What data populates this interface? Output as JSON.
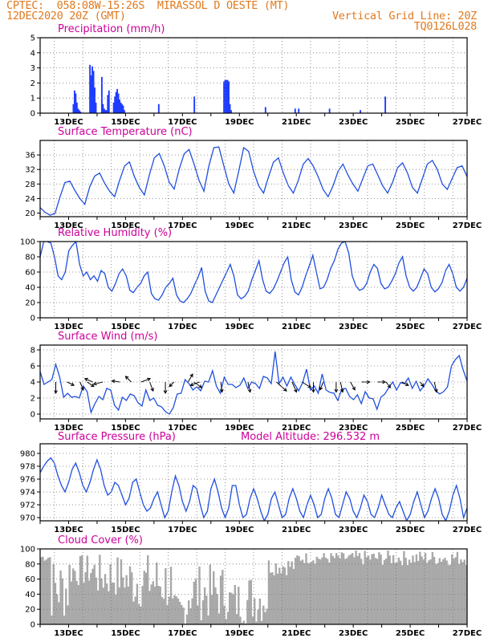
{
  "header": {
    "line1_left": "CPTEC:  058:08W-15:26S  MIRASSOL D OESTE (MT)",
    "line2_left": "12DEC2020 20Z (GMT)",
    "line2_right": "Vertical Grid Line: 20Z",
    "line3_right": "TQ0126L028"
  },
  "colors": {
    "header": "#e07a1f",
    "title": "#cc0099",
    "line": "#1f4fe0",
    "bar": "#1f3cff",
    "cloud": "#a9a9a9",
    "arrow": "#000000"
  },
  "x_tick_labels": [
    "13DEC",
    "15DEC",
    "17DEC",
    "19DEC",
    "21DEC",
    "23DEC",
    "25DEC",
    "27DEC"
  ],
  "chart_data": [
    {
      "type": "bar",
      "title": "Precipitation (mm/h)",
      "ylim": [
        0,
        5
      ],
      "yticks": [
        0,
        1,
        2,
        3,
        4,
        5
      ],
      "x_hours_since_start": [
        28,
        29,
        30,
        31,
        32,
        33,
        34,
        42,
        43,
        44,
        45,
        46,
        47,
        52,
        53,
        54,
        55,
        56,
        57,
        58,
        62,
        63,
        64,
        65,
        66,
        67,
        68,
        69,
        70,
        71,
        100,
        130,
        155,
        156,
        157,
        158,
        159,
        160,
        161,
        190,
        215,
        218,
        244,
        270,
        291
      ],
      "values": [
        0.6,
        1.5,
        1.3,
        0.7,
        0.3,
        0.2,
        0.1,
        3.2,
        2.5,
        3.1,
        2.8,
        1.7,
        0.7,
        2.4,
        0.6,
        0.3,
        0.2,
        0.2,
        1.2,
        1.5,
        0.7,
        1.1,
        1.4,
        1.6,
        1.3,
        0.9,
        0.7,
        0.6,
        0.5,
        0.2,
        0.6,
        1.1,
        2.1,
        2.2,
        2.2,
        2.2,
        2.1,
        0.6,
        0.2,
        0.4,
        0.3,
        0.3,
        0.3,
        0.2,
        1.1
      ]
    },
    {
      "type": "line",
      "title": "Surface Temperature (nC)",
      "ylim": [
        19,
        40
      ],
      "yticks": [
        20,
        24,
        28,
        32,
        36
      ],
      "values": [
        21.5,
        20.2,
        19.4,
        19.9,
        24.4,
        28.4,
        28.8,
        26.2,
        24.0,
        22.4,
        27.3,
        30.2,
        31.0,
        28.2,
        26.0,
        24.5,
        29.0,
        33.0,
        34.1,
        30.0,
        27.0,
        25.0,
        30.5,
        35.2,
        36.4,
        33.0,
        28.5,
        26.6,
        32.0,
        36.3,
        37.5,
        33.5,
        29.0,
        26.0,
        33.0,
        38.0,
        38.2,
        33.0,
        28.0,
        25.5,
        31.5,
        38.0,
        37.0,
        31.5,
        27.5,
        25.5,
        30.0,
        34.0,
        35.2,
        31.0,
        27.5,
        25.5,
        29.0,
        33.5,
        35.0,
        33.0,
        30.0,
        26.5,
        24.5,
        27.5,
        31.5,
        33.5,
        30.5,
        28.0,
        26.0,
        29.5,
        33.0,
        33.5,
        30.5,
        27.5,
        25.5,
        28.5,
        32.5,
        33.8,
        31.0,
        27.0,
        25.5,
        29.5,
        33.5,
        34.5,
        32.0,
        28.0,
        26.5,
        29.5,
        32.5,
        33.0,
        30.0
      ]
    },
    {
      "type": "line",
      "title": "Relative Humidity (%)",
      "ylim": [
        0,
        100
      ],
      "yticks": [
        0,
        20,
        40,
        60,
        80,
        100
      ],
      "values": [
        80,
        100,
        100,
        98,
        80,
        55,
        50,
        60,
        88,
        95,
        100,
        70,
        55,
        60,
        50,
        55,
        48,
        62,
        58,
        40,
        35,
        45,
        58,
        64,
        55,
        36,
        33,
        40,
        45,
        55,
        60,
        32,
        25,
        23,
        30,
        40,
        45,
        52,
        30,
        22,
        20,
        25,
        32,
        43,
        53,
        66,
        35,
        22,
        20,
        30,
        40,
        50,
        60,
        70,
        55,
        30,
        25,
        28,
        35,
        50,
        62,
        75,
        50,
        35,
        32,
        38,
        48,
        60,
        72,
        80,
        50,
        34,
        30,
        40,
        55,
        68,
        82,
        60,
        38,
        40,
        50,
        65,
        75,
        90,
        98,
        100,
        85,
        55,
        42,
        36,
        38,
        45,
        60,
        70,
        65,
        45,
        38,
        40,
        48,
        58,
        72,
        80,
        55,
        40,
        35,
        40,
        52,
        64,
        58,
        40,
        34,
        38,
        46,
        62,
        70,
        58,
        40,
        35,
        40,
        52
      ]
    },
    {
      "type": "line",
      "title": "Surface Wind (m/s)",
      "ylim": [
        -0.6,
        8.6
      ],
      "yticks": [
        0,
        2,
        4,
        6,
        8
      ],
      "values": [
        5.3,
        3.7,
        4.0,
        4.3,
        6.2,
        4.6,
        2.1,
        2.6,
        2.1,
        2.2,
        2.0,
        3.5,
        2.8,
        0.2,
        1.3,
        2.2,
        1.8,
        3.2,
        3.0,
        1.1,
        0.5,
        2.1,
        1.7,
        2.5,
        2.3,
        1.4,
        1.0,
        3.0,
        1.7,
        2.0,
        1.1,
        0.9,
        0.3,
        0.0,
        0.8,
        2.5,
        2.6,
        4.3,
        3.8,
        3.0,
        3.4,
        2.9,
        4.1,
        4.0,
        5.4,
        3.5,
        2.6,
        4.6,
        3.7,
        3.7,
        3.3,
        3.6,
        4.5,
        3.2,
        4.0,
        3.8,
        3.2,
        4.7,
        4.5,
        3.8,
        7.8,
        3.8,
        4.6,
        3.5,
        4.6,
        3.7,
        2.9,
        3.9,
        5.6,
        3.0,
        3.5,
        2.6,
        5.0,
        3.0,
        2.7,
        2.6,
        1.7,
        3.1,
        3.2,
        2.2,
        1.8,
        2.4,
        1.3,
        2.8,
        2.0,
        1.9,
        0.6,
        2.1,
        2.5,
        3.3,
        4.0,
        3.0,
        3.9,
        3.8,
        4.5,
        3.2,
        4.1,
        2.9,
        3.5,
        4.4,
        3.7,
        2.9,
        2.5,
        2.8,
        3.4,
        6.0,
        6.8,
        7.3,
        5.5,
        4.1
      ],
      "arrows": [
        {
          "day": 0.55,
          "dx": 0.0,
          "dy": 1.0
        },
        {
          "day": 0.95,
          "dx": 0.6,
          "dy": 0.3
        },
        {
          "day": 1.4,
          "dx": 0.3,
          "dy": 0.7
        },
        {
          "day": 1.65,
          "dx": 0.6,
          "dy": 0.4
        },
        {
          "day": 1.85,
          "dx": -0.7,
          "dy": -0.3
        },
        {
          "day": 2.2,
          "dx": -0.8,
          "dy": 0.2
        },
        {
          "day": 2.8,
          "dx": -0.7,
          "dy": -0.1
        },
        {
          "day": 3.2,
          "dx": -0.5,
          "dy": -0.5
        },
        {
          "day": 3.55,
          "dx": 0.8,
          "dy": -0.3
        },
        {
          "day": 3.85,
          "dx": 0.3,
          "dy": 0.8
        },
        {
          "day": 4.4,
          "dx": 0.0,
          "dy": 1.0
        },
        {
          "day": 4.7,
          "dx": -0.4,
          "dy": 0.4
        },
        {
          "day": 5.2,
          "dx": 0.4,
          "dy": -0.7
        },
        {
          "day": 5.4,
          "dx": 0.7,
          "dy": 0.5
        },
        {
          "day": 5.6,
          "dx": -0.8,
          "dy": 0.3
        },
        {
          "day": 6.35,
          "dx": 0.1,
          "dy": 0.9
        },
        {
          "day": 7.3,
          "dx": 0.2,
          "dy": 0.9
        },
        {
          "day": 8.3,
          "dx": 0.9,
          "dy": 0.8
        },
        {
          "day": 8.85,
          "dx": 0.4,
          "dy": 0.9
        },
        {
          "day": 9.2,
          "dx": 0.8,
          "dy": 0.5
        },
        {
          "day": 9.6,
          "dx": 0.0,
          "dy": 0.9
        },
        {
          "day": 9.95,
          "dx": -0.3,
          "dy": 0.7
        },
        {
          "day": 10.4,
          "dx": 0.0,
          "dy": 0.9
        },
        {
          "day": 10.55,
          "dx": 0.2,
          "dy": 0.9
        },
        {
          "day": 10.9,
          "dx": 0.4,
          "dy": 0.7
        },
        {
          "day": 11.3,
          "dx": 0.7,
          "dy": 0.0
        },
        {
          "day": 11.85,
          "dx": 0.7,
          "dy": 0.0
        },
        {
          "day": 12.15,
          "dx": 0.4,
          "dy": 0.5
        },
        {
          "day": 12.7,
          "dx": 0.6,
          "dy": 0.3
        },
        {
          "day": 13.35,
          "dx": 0.3,
          "dy": 0.4
        },
        {
          "day": 13.85,
          "dx": 0.2,
          "dy": 0.9
        }
      ]
    },
    {
      "type": "line",
      "title": "Surface Pressure (hPa)",
      "subtitle": "Model Altitude: 296.532 m",
      "ylim": [
        969.5,
        981.5
      ],
      "yticks": [
        970,
        972,
        974,
        976,
        978,
        980
      ],
      "values": [
        977.0,
        978.0,
        978.8,
        979.3,
        978.5,
        976.5,
        975.0,
        974.0,
        975.5,
        977.5,
        978.5,
        977.0,
        975.0,
        974.0,
        975.5,
        977.5,
        979.0,
        977.5,
        975.0,
        973.5,
        974.0,
        975.5,
        975.0,
        973.5,
        972.0,
        973.0,
        975.5,
        976.0,
        974.0,
        972.0,
        971.0,
        971.5,
        973.0,
        974.0,
        972.0,
        970.0,
        971.0,
        974.0,
        976.5,
        975.0,
        972.5,
        971.0,
        972.5,
        975.0,
        974.5,
        972.0,
        970.0,
        971.0,
        974.5,
        976.0,
        974.0,
        971.5,
        970.0,
        971.5,
        975.0,
        975.0,
        972.0,
        970.0,
        970.5,
        973.0,
        974.5,
        973.0,
        971.0,
        969.5,
        970.5,
        973.0,
        974.0,
        972.0,
        970.0,
        970.5,
        973.0,
        974.5,
        973.0,
        971.0,
        970.0,
        972.0,
        973.5,
        972.0,
        970.0,
        970.5,
        973.0,
        974.5,
        973.0,
        970.5,
        970.0,
        972.0,
        974.0,
        973.0,
        971.0,
        970.0,
        971.5,
        973.5,
        972.5,
        970.5,
        970.0,
        971.5,
        973.5,
        972.0,
        970.5,
        970.0,
        971.5,
        972.5,
        971.0,
        969.5,
        970.5,
        972.5,
        974.0,
        972.0,
        970.0,
        971.0,
        973.0,
        974.5,
        973.0,
        970.5,
        969.5,
        971.0,
        973.5,
        975.0,
        973.0,
        970.0,
        971.5
      ]
    },
    {
      "type": "bar",
      "title": "Cloud Cover (%)",
      "ylim": [
        0,
        100
      ],
      "yticks": [
        0,
        20,
        40,
        60,
        80,
        100
      ],
      "segments": [
        {
          "d0": 0.0,
          "d1": 0.35,
          "lo": 83,
          "hi": 95
        },
        {
          "d0": 0.35,
          "d1": 1.0,
          "lo": 5,
          "hi": 90
        },
        {
          "d0": 1.0,
          "d1": 2.0,
          "lo": 50,
          "hi": 93
        },
        {
          "d0": 2.0,
          "d1": 3.0,
          "lo": 35,
          "hi": 93
        },
        {
          "d0": 3.0,
          "d1": 4.0,
          "lo": 20,
          "hi": 95
        },
        {
          "d0": 4.0,
          "d1": 4.6,
          "lo": 15,
          "hi": 95
        },
        {
          "d0": 4.6,
          "d1": 5.2,
          "lo": 0,
          "hi": 40
        },
        {
          "d0": 5.2,
          "d1": 6.6,
          "lo": 5,
          "hi": 80
        },
        {
          "d0": 6.6,
          "d1": 7.3,
          "lo": 0,
          "hi": 60
        },
        {
          "d0": 7.3,
          "d1": 8.0,
          "lo": 0,
          "hi": 70
        },
        {
          "d0": 8.0,
          "d1": 9.0,
          "lo": 65,
          "hi": 90
        },
        {
          "d0": 9.0,
          "d1": 11.0,
          "lo": 80,
          "hi": 96
        },
        {
          "d0": 11.0,
          "d1": 15.0,
          "lo": 78,
          "hi": 98
        }
      ]
    }
  ]
}
